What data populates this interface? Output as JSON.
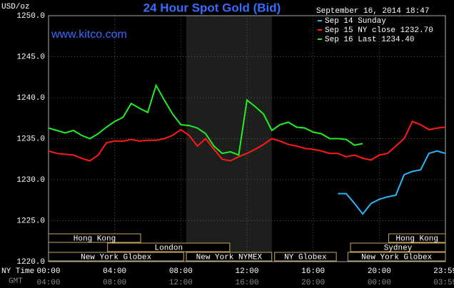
{
  "chart_data": {
    "type": "line",
    "title": "24 Hour Spot Gold (Bid)",
    "website": "www.kitco.com",
    "timestamp": "September 16, 2014 18:47",
    "y_label": "USD/oz",
    "x_row_labels": [
      "NY Time",
      "GMT"
    ],
    "x": [
      0,
      0.5,
      1,
      1.5,
      2,
      2.5,
      3,
      3.5,
      4,
      4.5,
      5,
      5.5,
      6,
      6.5,
      7,
      7.5,
      8,
      8.5,
      9,
      9.5,
      10,
      10.5,
      11,
      11.5,
      12,
      12.5,
      13,
      13.5,
      14,
      14.5,
      15,
      15.5,
      16,
      16.5,
      17,
      17.5,
      18,
      18.5,
      19,
      19.5,
      20,
      20.5,
      21,
      21.5,
      22,
      22.5,
      23,
      23.5,
      24
    ],
    "series": [
      {
        "name": "Sep 14 Sunday",
        "color": "#29b6f6",
        "values": [
          null,
          null,
          null,
          null,
          null,
          null,
          null,
          null,
          null,
          null,
          null,
          null,
          null,
          null,
          null,
          null,
          null,
          null,
          null,
          null,
          null,
          null,
          null,
          null,
          null,
          null,
          null,
          null,
          null,
          null,
          null,
          null,
          null,
          null,
          null,
          1228.3,
          1228.3,
          1227.1,
          1225.8,
          1227.1,
          1227.6,
          1227.9,
          1228.1,
          1230.6,
          1231.0,
          1231.2,
          1233.2,
          1233.5,
          1233.2
        ]
      },
      {
        "name": "Sep 15 NY close 1232.70",
        "color": "#ff1a1a",
        "values": [
          1233.5,
          1233.2,
          1233.1,
          1233.0,
          1232.6,
          1232.3,
          1233.0,
          1234.5,
          1234.7,
          1234.7,
          1234.9,
          1234.7,
          1234.8,
          1234.8,
          1235.0,
          1235.4,
          1236.1,
          1235.4,
          1234.1,
          1235.0,
          1233.7,
          1232.5,
          1232.3,
          1232.8,
          1233.2,
          1233.7,
          1234.3,
          1235.0,
          1234.7,
          1234.3,
          1234.1,
          1233.8,
          1233.7,
          1233.5,
          1233.2,
          1233.2,
          1232.8,
          1233.0,
          1232.6,
          1232.4,
          1233.0,
          1233.2,
          1234.1,
          1235.0,
          1237.1,
          1236.7,
          1236.1,
          1236.3,
          1236.4
        ]
      },
      {
        "name": "Sep 16 Last 1234.40",
        "color": "#22ee22",
        "values": [
          1236.3,
          1236.0,
          1235.7,
          1236.0,
          1235.4,
          1235.0,
          1235.6,
          1236.4,
          1237.1,
          1237.6,
          1239.3,
          1238.7,
          1238.2,
          1241.5,
          1239.7,
          1238.0,
          1236.7,
          1236.6,
          1236.3,
          1235.6,
          1234.1,
          1233.2,
          1233.4,
          1233.0,
          1239.7,
          1238.9,
          1238.0,
          1236.0,
          1236.7,
          1237.0,
          1236.4,
          1236.3,
          1235.8,
          1235.6,
          1235.0,
          1235.0,
          1234.9,
          1234.2,
          1234.4,
          null,
          null,
          null,
          null,
          null,
          null,
          null,
          null,
          null,
          null
        ]
      }
    ],
    "xlim": [
      0,
      24
    ],
    "xticks": [
      {
        "value": 0,
        "label": "00:00"
      },
      {
        "value": 4,
        "label": "04:00"
      },
      {
        "value": 8,
        "label": "08:00"
      },
      {
        "value": 12,
        "label": "12:00"
      },
      {
        "value": 16,
        "label": "16:00"
      },
      {
        "value": 20,
        "label": "20:00"
      },
      {
        "value": 23.983,
        "label": "23:59"
      }
    ],
    "gmt_ticklabels": [
      "04:00",
      "08:00",
      "12:00",
      "16:00",
      "20:00",
      "00:00",
      "03:59"
    ],
    "ylim": [
      1220,
      1250
    ],
    "yticks": [
      {
        "value": 1220,
        "label": "1220.0"
      },
      {
        "value": 1225,
        "label": "1225.0"
      },
      {
        "value": 1230,
        "label": "1230.0"
      },
      {
        "value": 1235,
        "label": "1235.0"
      },
      {
        "value": 1240,
        "label": "1240.0"
      },
      {
        "value": 1245,
        "label": "1245.0"
      },
      {
        "value": 1250,
        "label": "1250.0"
      }
    ],
    "grid": true,
    "shaded_range": [
      8.33,
      13.5
    ],
    "session_rows": [
      [
        {
          "label": "Hong Kong",
          "start": 0,
          "end": 5.57
        },
        {
          "label": "Hong Kong",
          "start": 20.57,
          "end": 24
        }
      ],
      [
        {
          "label": "London",
          "start": 3.57,
          "end": 10.96
        },
        {
          "label": "Sydney",
          "start": 18.26,
          "end": 24
        }
      ],
      [
        {
          "label": "New York Globex",
          "start": 0,
          "end": 8.17
        },
        {
          "label": "New York NYMEX",
          "start": 8.33,
          "end": 13.5
        },
        {
          "label": "NY Globex",
          "start": 13.67,
          "end": 17.4
        },
        {
          "label": "New York Globex",
          "start": 18.1,
          "end": 24
        }
      ]
    ]
  }
}
